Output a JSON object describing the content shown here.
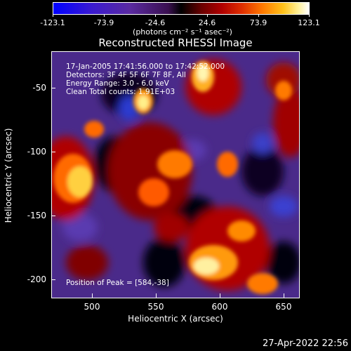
{
  "colorbar": {
    "ticks": [
      "-123.1",
      "-73.9",
      "-24.6",
      "24.6",
      "73.9",
      "123.1"
    ],
    "units": "(photons cm⁻² s⁻¹ asec⁻²)",
    "colors": [
      "#0000ff",
      "#5a2aa0",
      "#000000",
      "#b00000",
      "#ff7a00",
      "#ffffff"
    ]
  },
  "title": "Reconstructed RHESSI Image",
  "info": {
    "line1": "17-Jan-2005 17:41:56.000 to 17:42:52.000",
    "line2": "Detectors: 3F 4F 5F 6F 7F 8F, All",
    "line3": "Energy Range: 3.0 - 6.0 keV",
    "line4": "Clean     Total counts: 1.91E+03",
    "peak": "Position of Peak = [584,-38]"
  },
  "axes": {
    "xlabel": "Heliocentric X (arcsec)",
    "ylabel": "Heliocentric Y (arcsec)",
    "xticks": [
      "500",
      "550",
      "600",
      "650"
    ],
    "yticks": [
      "-50",
      "-100",
      "-150",
      "-200"
    ],
    "xlim": [
      468,
      662
    ],
    "ylim": [
      -221,
      -26
    ]
  },
  "datestamp": "27-Apr-2022 22:56"
}
